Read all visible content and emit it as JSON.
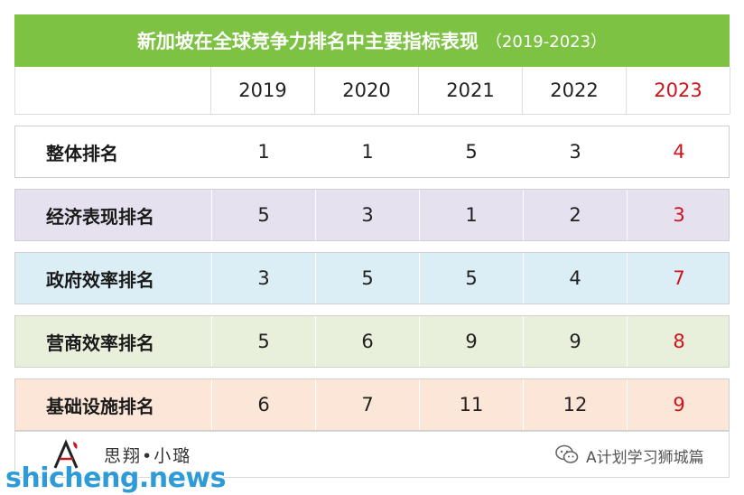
{
  "chart_data": {
    "type": "table",
    "title": "新加坡在全球竞争力排名中主要指标表现",
    "title_years": "（2019-2023）",
    "columns": [
      "2019",
      "2020",
      "2021",
      "2022",
      "2023"
    ],
    "highlight_column": "2023",
    "rows": [
      {
        "label": "整体排名",
        "values": [
          1,
          1,
          5,
          3,
          4
        ],
        "color": "#ffffff"
      },
      {
        "label": "经济表现排名",
        "values": [
          5,
          3,
          1,
          2,
          3
        ],
        "color": "#e6e1ef"
      },
      {
        "label": "政府效率排名",
        "values": [
          3,
          5,
          5,
          4,
          7
        ],
        "color": "#dbeef5"
      },
      {
        "label": "营商效率排名",
        "values": [
          5,
          6,
          9,
          9,
          8
        ],
        "color": "#e8f0dc"
      },
      {
        "label": "基础设施排名",
        "values": [
          6,
          7,
          11,
          12,
          9
        ],
        "color": "#fce6d7"
      }
    ]
  },
  "colors": {
    "title_bg": "#7dc242",
    "highlight_text": "#d0121b",
    "watermark": "#2f9bd6"
  },
  "footer": {
    "logo_text": "思翔•小璐",
    "logo_icon": "logo-a-mark",
    "wechat_icon": "wechat-icon",
    "wechat_name": "A计划学习狮城篇"
  },
  "watermark": "shicheng.news"
}
